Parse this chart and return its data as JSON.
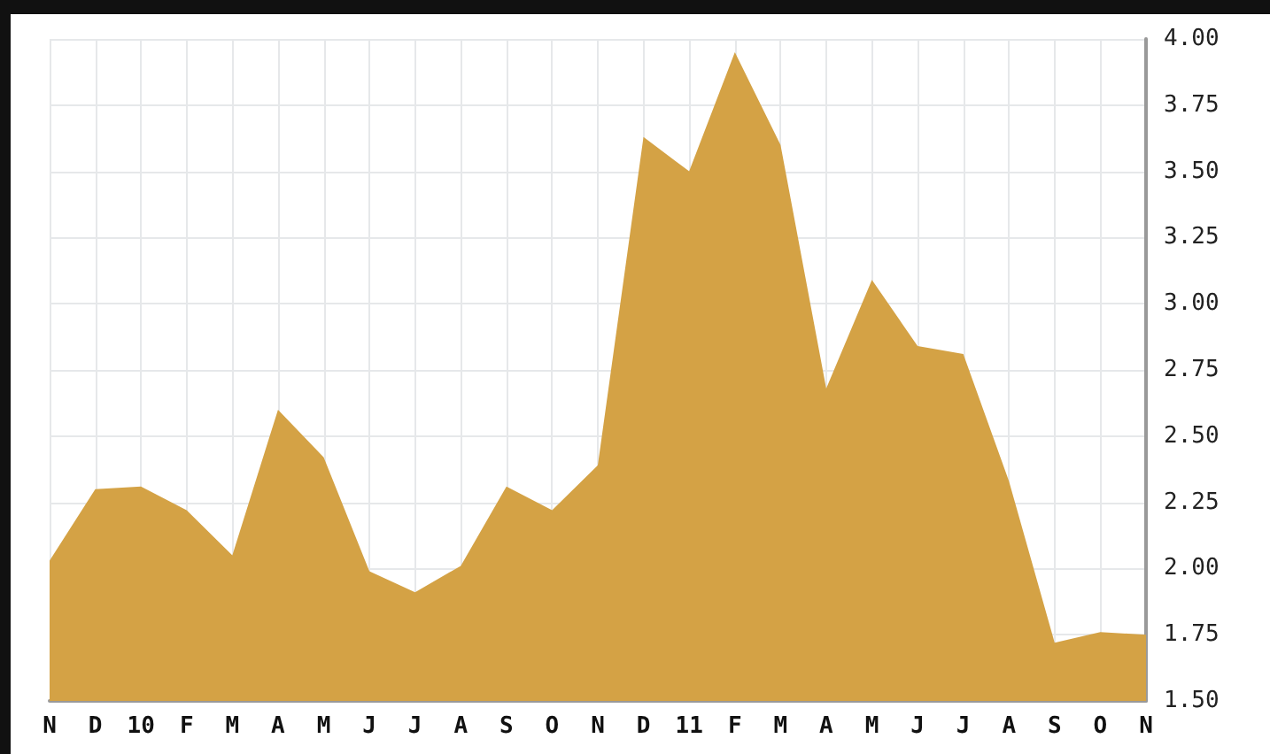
{
  "chart_data": {
    "type": "area",
    "categories": [
      "N",
      "D",
      "10",
      "F",
      "M",
      "A",
      "M",
      "J",
      "J",
      "A",
      "S",
      "O",
      "N",
      "D",
      "11",
      "F",
      "M",
      "A",
      "M",
      "J",
      "J",
      "A",
      "S",
      "O",
      "N"
    ],
    "values": [
      2.03,
      2.3,
      2.31,
      2.22,
      2.05,
      2.6,
      2.42,
      1.99,
      1.91,
      2.01,
      2.31,
      2.22,
      2.39,
      3.63,
      3.5,
      3.95,
      3.6,
      2.68,
      3.09,
      2.84,
      2.81,
      2.33,
      1.72,
      1.76,
      1.75
    ],
    "color": "#d4a245",
    "ylim": [
      1.5,
      4.0
    ],
    "yticks": [
      {
        "value": 1.5,
        "label": "1.50"
      },
      {
        "value": 1.75,
        "label": "1.75"
      },
      {
        "value": 2.0,
        "label": "2.00"
      },
      {
        "value": 2.25,
        "label": "2.25"
      },
      {
        "value": 2.5,
        "label": "2.50"
      },
      {
        "value": 2.75,
        "label": "2.75"
      },
      {
        "value": 3.0,
        "label": "3.00"
      },
      {
        "value": 3.25,
        "label": "3.25"
      },
      {
        "value": 3.5,
        "label": "3.50"
      },
      {
        "value": 3.75,
        "label": "3.75"
      },
      {
        "value": 4.0,
        "label": "4.00"
      }
    ],
    "grid": true
  }
}
